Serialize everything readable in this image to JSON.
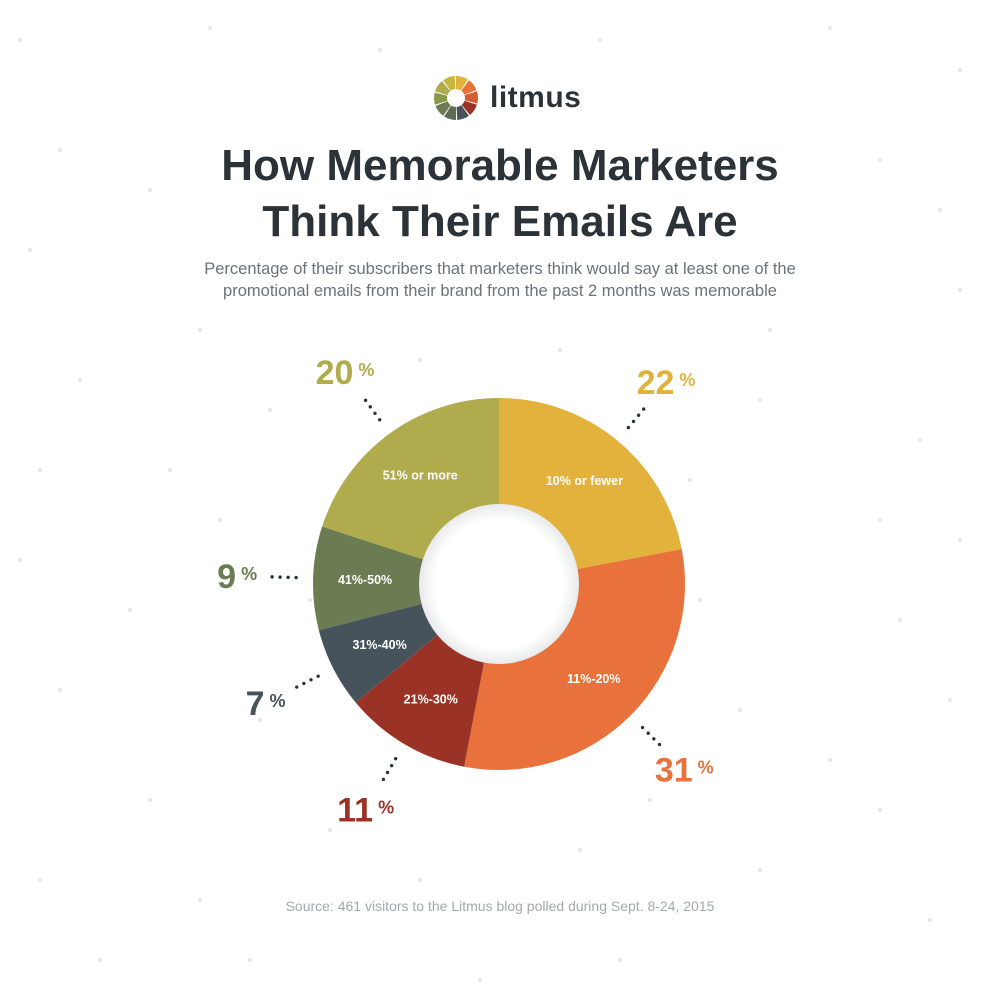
{
  "brand": {
    "name": "litmus"
  },
  "title_line1": "How Memorable Marketers",
  "title_line2": "Think Their Emails Are",
  "subtitle_line1": "Percentage of their subscribers that marketers think would say at least one of the",
  "subtitle_line2": "promotional emails from their brand from the past 2 months was memorable",
  "source": "Source: 461 visitors to the Litmus blog polled during Sept. 8-24, 2015",
  "colors": {
    "text_dark": "#2b3338",
    "subtitle": "#6b7378",
    "source": "#a4a9ad"
  },
  "chart_data": {
    "type": "pie",
    "donut": true,
    "categories": [
      "10% or fewer",
      "11%-20%",
      "21%-30%",
      "31%-40%",
      "41%-50%",
      "51% or more"
    ],
    "values": [
      22,
      31,
      11,
      7,
      9,
      20
    ],
    "value_labels": [
      "22",
      "31",
      "11",
      "7",
      "9",
      "20"
    ],
    "unit": "%",
    "colors": [
      "#e2b23d",
      "#e8713c",
      "#9b3226",
      "#47535a",
      "#6c7c52",
      "#b0ab4d"
    ]
  }
}
